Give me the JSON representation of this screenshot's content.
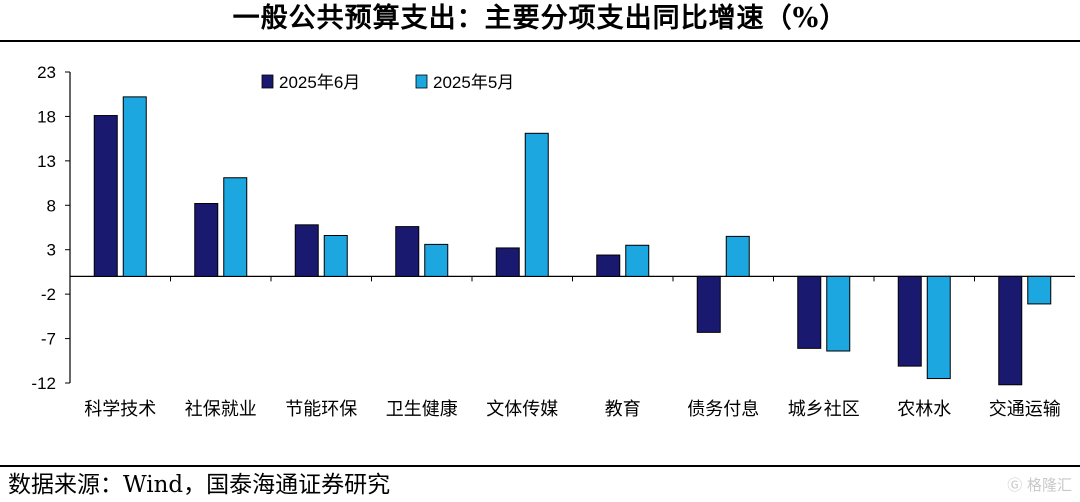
{
  "title": "一般公共预算支出：主要分项支出同比增速（%）",
  "source": "数据来源：Wind，国泰海通证券研究",
  "watermark": "格隆汇",
  "chart_data": {
    "type": "bar",
    "categories": [
      "科学技术",
      "社保就业",
      "节能环保",
      "卫生健康",
      "文体传媒",
      "教育",
      "债务付息",
      "城乡社区",
      "农林水",
      "交通运输"
    ],
    "series": [
      {
        "name": "2025年6月",
        "color": "#191970",
        "values": [
          18.1,
          8.2,
          5.8,
          5.6,
          3.2,
          2.4,
          -6.3,
          -8.1,
          -10.1,
          -12.2
        ]
      },
      {
        "name": "2025年5月",
        "color": "#1CA7E0",
        "values": [
          20.2,
          11.1,
          4.6,
          3.6,
          16.1,
          3.5,
          4.5,
          -8.4,
          -11.5,
          -3.1
        ]
      }
    ],
    "yticks": [
      23,
      18,
      13,
      8,
      3,
      -2,
      -7,
      -12
    ],
    "ylim": [
      -12,
      23
    ],
    "xlabel": "",
    "ylabel": "",
    "grid": false,
    "legend": "top-left"
  }
}
